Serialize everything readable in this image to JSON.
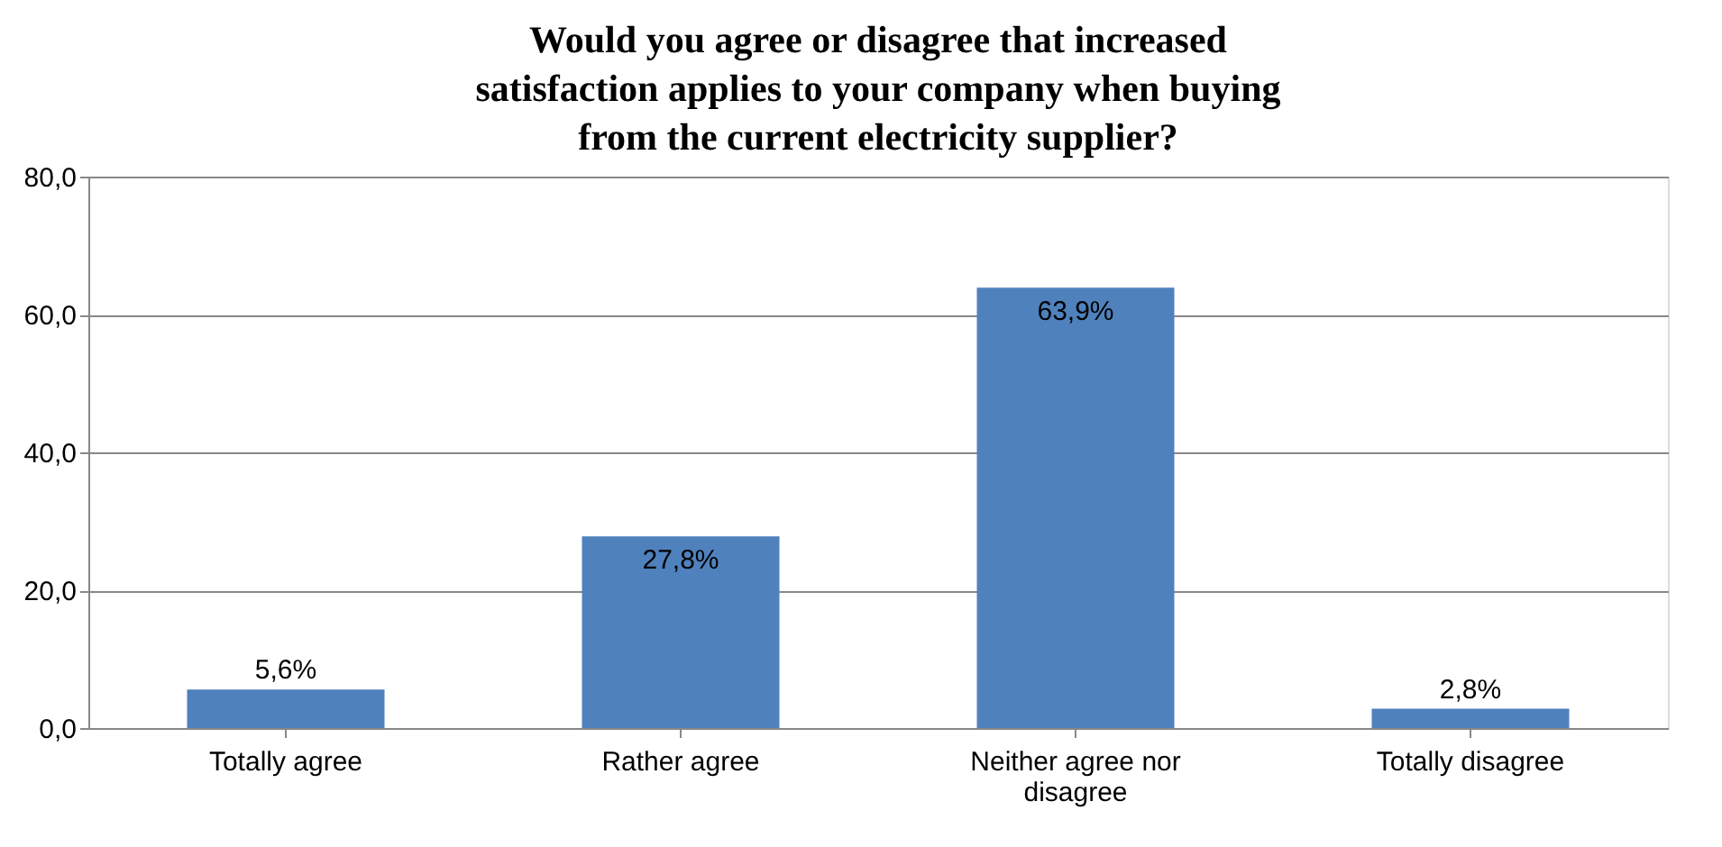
{
  "chart_data": {
    "type": "bar",
    "title": "Would you agree or disagree that increased satisfaction applies to your company when buying from the current electricity supplier?",
    "categories": [
      "Totally agree",
      "Rather agree",
      "Neither agree nor disagree",
      "Totally disagree"
    ],
    "values": [
      5.6,
      27.8,
      63.9,
      2.8
    ],
    "value_labels": [
      "5,6%",
      "27,8%",
      "63,9%",
      "2,8%"
    ],
    "color": "#4f81bd",
    "ylim": [
      0,
      80
    ],
    "yticks": [
      {
        "value": 0,
        "label": "0,0"
      },
      {
        "value": 20,
        "label": "20,0"
      },
      {
        "value": 40,
        "label": "40,0"
      },
      {
        "value": 60,
        "label": "60,0"
      },
      {
        "value": 80,
        "label": "80,0"
      }
    ],
    "grid": "y"
  }
}
